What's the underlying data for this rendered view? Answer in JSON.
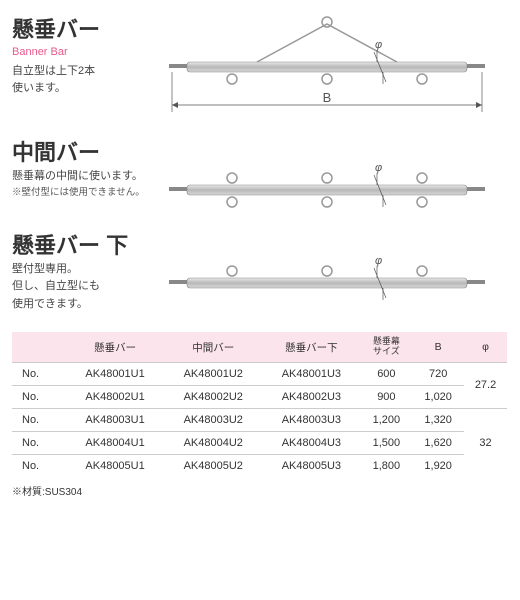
{
  "colors": {
    "bar_fill": "#c8c8c8",
    "bar_stroke": "#888",
    "ring": "#999",
    "dim": "#555",
    "accent": "#e85a8c",
    "header_bg": "#fce4ec",
    "rule": "#ccc"
  },
  "sections": [
    {
      "title_jp": "懸垂バー",
      "title_en": "Banner Bar",
      "notes": [
        "自立型は上下2本",
        "使います。"
      ],
      "kind": "top"
    },
    {
      "title_jp": "中間バー",
      "title_en": "",
      "notes": [
        "懸垂幕の中間に使います。",
        "※壁付型には使用できません。"
      ],
      "kind": "mid"
    },
    {
      "title_jp": "懸垂バー 下",
      "title_en": "",
      "notes": [
        "壁付型専用。",
        "但し、自立型にも",
        "使用できます。"
      ],
      "kind": "bottom"
    }
  ],
  "table": {
    "headers": [
      "",
      "懸垂バー",
      "中間バー",
      "懸垂バー下",
      "懸垂幕\nサイズ",
      "B",
      "φ"
    ],
    "rows": [
      {
        "no": "No.",
        "c": [
          "AK48001U1",
          "AK48001U2",
          "AK48001U3",
          "600",
          "720"
        ],
        "phi": "27.2",
        "phi_span": 2
      },
      {
        "no": "No.",
        "c": [
          "AK48002U1",
          "AK48002U2",
          "AK48002U3",
          "900",
          "1,020"
        ]
      },
      {
        "no": "No.",
        "c": [
          "AK48003U1",
          "AK48003U2",
          "AK48003U3",
          "1,200",
          "1,320"
        ],
        "phi": "32",
        "phi_span": 3
      },
      {
        "no": "No.",
        "c": [
          "AK48004U1",
          "AK48004U2",
          "AK48004U3",
          "1,500",
          "1,620"
        ]
      },
      {
        "no": "No.",
        "c": [
          "AK48005U1",
          "AK48005U2",
          "AK48005U3",
          "1,800",
          "1,920"
        ]
      }
    ]
  },
  "footnote": "※材質:SUS304",
  "labels": {
    "B": "B",
    "phi": "φ"
  }
}
